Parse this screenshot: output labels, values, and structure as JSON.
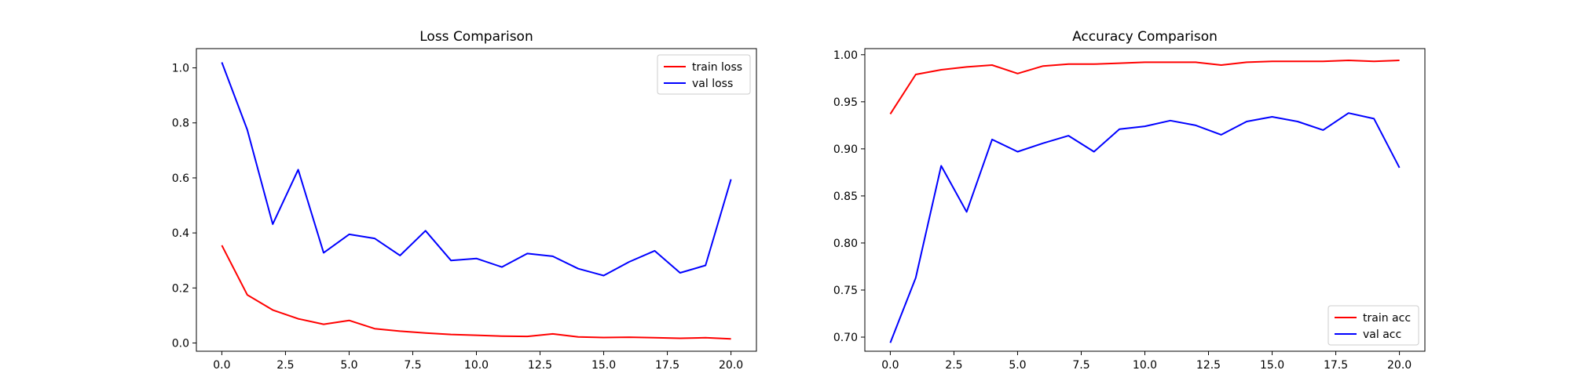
{
  "chart_data": [
    {
      "type": "line",
      "title": "Loss Comparison",
      "xlabel": "",
      "ylabel": "",
      "xlim": [
        -1,
        21
      ],
      "ylim": [
        -0.03,
        1.07
      ],
      "xticks": [
        0,
        2.5,
        5,
        7.5,
        10,
        12.5,
        15,
        17.5,
        20
      ],
      "xtick_labels": [
        "0.0",
        "2.5",
        "5.0",
        "7.5",
        "10.0",
        "12.5",
        "15.0",
        "17.5",
        "20.0"
      ],
      "yticks": [
        0,
        0.2,
        0.4,
        0.6,
        0.8,
        1.0
      ],
      "ytick_labels": [
        "0.0",
        "0.2",
        "0.4",
        "0.6",
        "0.8",
        "1.0"
      ],
      "grid": false,
      "legend": "top-right",
      "x": [
        0,
        1,
        2,
        3,
        4,
        5,
        6,
        7,
        8,
        9,
        10,
        11,
        12,
        13,
        14,
        15,
        16,
        17,
        18,
        19,
        20
      ],
      "series": [
        {
          "name": "train loss",
          "color": "#ff0000",
          "values": [
            0.355,
            0.175,
            0.12,
            0.088,
            0.068,
            0.082,
            0.052,
            0.043,
            0.036,
            0.031,
            0.028,
            0.025,
            0.024,
            0.033,
            0.022,
            0.02,
            0.021,
            0.019,
            0.017,
            0.019,
            0.015
          ]
        },
        {
          "name": "val loss",
          "color": "#0000ff",
          "values": [
            1.02,
            0.775,
            0.432,
            0.63,
            0.328,
            0.395,
            0.38,
            0.318,
            0.408,
            0.3,
            0.307,
            0.276,
            0.325,
            0.315,
            0.27,
            0.245,
            0.295,
            0.335,
            0.255,
            0.282,
            0.595
          ]
        }
      ]
    },
    {
      "type": "line",
      "title": "Accuracy Comparison",
      "xlabel": "",
      "ylabel": "",
      "xlim": [
        -1,
        21
      ],
      "ylim": [
        0.685,
        1.0065
      ],
      "xticks": [
        0,
        2.5,
        5,
        7.5,
        10,
        12.5,
        15,
        17.5,
        20
      ],
      "xtick_labels": [
        "0.0",
        "2.5",
        "5.0",
        "7.5",
        "10.0",
        "12.5",
        "15.0",
        "17.5",
        "20.0"
      ],
      "yticks": [
        0.7,
        0.75,
        0.8,
        0.85,
        0.9,
        0.95,
        1.0
      ],
      "ytick_labels": [
        "0.70",
        "0.75",
        "0.80",
        "0.85",
        "0.90",
        "0.95",
        "1.00"
      ],
      "grid": false,
      "legend": "bottom-right",
      "x": [
        0,
        1,
        2,
        3,
        4,
        5,
        6,
        7,
        8,
        9,
        10,
        11,
        12,
        13,
        14,
        15,
        16,
        17,
        18,
        19,
        20
      ],
      "series": [
        {
          "name": "train acc",
          "color": "#ff0000",
          "values": [
            0.937,
            0.979,
            0.984,
            0.987,
            0.989,
            0.98,
            0.988,
            0.99,
            0.99,
            0.991,
            0.992,
            0.992,
            0.992,
            0.989,
            0.992,
            0.993,
            0.993,
            0.993,
            0.994,
            0.993,
            0.994
          ]
        },
        {
          "name": "val acc",
          "color": "#0000ff",
          "values": [
            0.694,
            0.763,
            0.882,
            0.833,
            0.91,
            0.897,
            0.906,
            0.914,
            0.897,
            0.921,
            0.924,
            0.93,
            0.925,
            0.915,
            0.929,
            0.934,
            0.929,
            0.92,
            0.938,
            0.932,
            0.88
          ]
        }
      ]
    }
  ]
}
